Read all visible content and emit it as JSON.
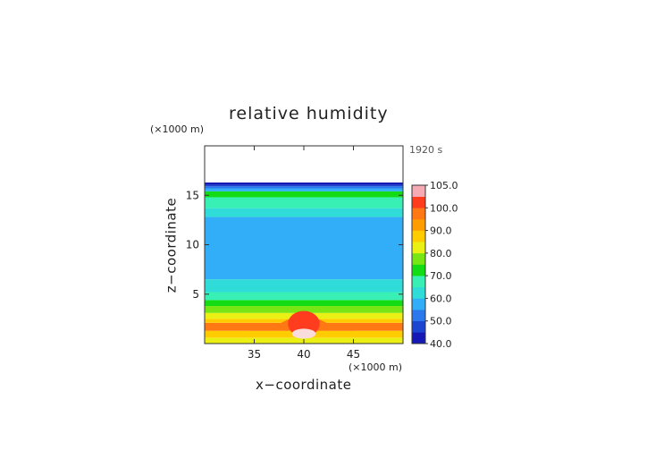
{
  "chart_data": {
    "type": "heatmap",
    "title": "relative humidity",
    "xlabel": "x−coordinate",
    "ylabel": "z−coordinate",
    "x_unit": "(×1000 m)",
    "y_unit": "(×1000 m)",
    "time_label": "1920 s",
    "xlim": [
      30,
      50
    ],
    "ylim": [
      0,
      20
    ],
    "x_ticks": [
      35,
      40,
      45
    ],
    "y_ticks": [
      5,
      10,
      15
    ],
    "colorbar": {
      "min": 40,
      "max": 105,
      "step": 5,
      "tick_values": [
        40,
        50,
        60,
        70,
        80,
        90,
        100,
        105
      ],
      "tick_labels": [
        "40.0",
        "50.0",
        "60.0",
        "70.0",
        "80.0",
        "90.0",
        "100.0",
        "105.0"
      ],
      "colors": [
        "#1418b4",
        "#1c46d2",
        "#2a78ec",
        "#32aef8",
        "#30dcd8",
        "#38f0b4",
        "#14dc14",
        "#78e614",
        "#eaf014",
        "#ffcc00",
        "#ff9d00",
        "#ff7814",
        "#ff3c1e",
        "#f5aab4"
      ]
    },
    "data_top_z": 16.3,
    "profile": [
      {
        "z_from": 0.0,
        "z_to": 0.6,
        "value": 82
      },
      {
        "z_from": 0.6,
        "z_to": 1.3,
        "value": 87
      },
      {
        "z_from": 1.3,
        "z_to": 2.1,
        "value": 97
      },
      {
        "z_from": 2.1,
        "z_to": 2.5,
        "value": 88
      },
      {
        "z_from": 2.5,
        "z_to": 3.1,
        "value": 83
      },
      {
        "z_from": 3.1,
        "z_to": 3.8,
        "value": 77
      },
      {
        "z_from": 3.8,
        "z_to": 4.4,
        "value": 73
      },
      {
        "z_from": 4.4,
        "z_to": 5.2,
        "value": 67
      },
      {
        "z_from": 5.2,
        "z_to": 6.5,
        "value": 63
      },
      {
        "z_from": 6.5,
        "z_to": 12.8,
        "value": 57
      },
      {
        "z_from": 12.8,
        "z_to": 13.7,
        "value": 63
      },
      {
        "z_from": 13.7,
        "z_to": 14.8,
        "value": 67
      },
      {
        "z_from": 14.8,
        "z_to": 15.4,
        "value": 73
      },
      {
        "z_from": 15.4,
        "z_to": 15.7,
        "value": 57
      },
      {
        "z_from": 15.7,
        "z_to": 15.9,
        "value": 52
      },
      {
        "z_from": 15.9,
        "z_to": 16.05,
        "value": 47
      },
      {
        "z_from": 16.05,
        "z_to": 16.3,
        "value": 42
      }
    ],
    "features": [
      {
        "shape": "wave",
        "x_from": 34.5,
        "x_to": 45.5,
        "center_x": 40,
        "z_base": 1.3,
        "z_peak": 2.8,
        "value": 97
      },
      {
        "shape": "ellipse",
        "center_x": 40,
        "center_z": 2.0,
        "radius_x": 1.6,
        "radius_z": 1.3,
        "value": 102
      },
      {
        "shape": "ellipse",
        "center_x": 40,
        "center_z": 1.0,
        "radius_x": 1.2,
        "radius_z": 0.5,
        "value": 107
      }
    ]
  }
}
